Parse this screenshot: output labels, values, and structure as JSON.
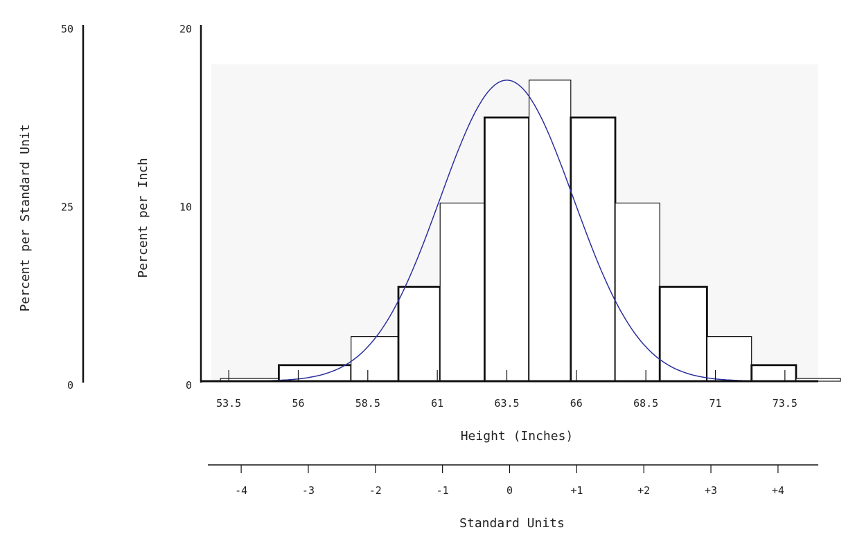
{
  "chart_data": {
    "type": "bar",
    "title": "",
    "xlabel": "Height (Inches)",
    "x2label": "Standard Units",
    "ylabel": "Percent per Inch",
    "y2label": "Percent per Standard Unit",
    "x_ticks": [
      "53.5",
      "56",
      "58.5",
      "61",
      "63.5",
      "66",
      "68.5",
      "71",
      "73.5"
    ],
    "x_tick_values": [
      53.5,
      56,
      58.5,
      61,
      63.5,
      66,
      68.5,
      71,
      73.5
    ],
    "x2_ticks": [
      "-4",
      "-3",
      "-2",
      "-1",
      "0",
      "+1",
      "+2",
      "+3",
      "+4"
    ],
    "x2_tick_values": [
      -4,
      -3,
      -2,
      -1,
      0,
      1,
      2,
      3,
      4
    ],
    "y_ticks": [
      "0",
      "10",
      "20"
    ],
    "y_tick_values": [
      0,
      10,
      20
    ],
    "y2_ticks": [
      "0",
      "25",
      "50"
    ],
    "y2_tick_values": [
      0,
      25,
      50
    ],
    "xlim": [
      52.5,
      74.7
    ],
    "x2lim": [
      -4.6,
      4.6
    ],
    "ylim": [
      0,
      20
    ],
    "y2lim": [
      0,
      50
    ],
    "bins": [
      {
        "x0": 53.2,
        "x1": 55.3,
        "value": 0.15
      },
      {
        "x0": 55.3,
        "x1": 57.9,
        "value": 0.9
      },
      {
        "x0": 57.9,
        "x1": 59.6,
        "value": 2.5
      },
      {
        "x0": 59.6,
        "x1": 61.1,
        "value": 5.3
      },
      {
        "x0": 61.1,
        "x1": 62.7,
        "value": 10.0
      },
      {
        "x0": 62.7,
        "x1": 64.3,
        "value": 14.8
      },
      {
        "x0": 64.3,
        "x1": 65.8,
        "value": 16.9
      },
      {
        "x0": 65.8,
        "x1": 67.4,
        "value": 14.8
      },
      {
        "x0": 67.4,
        "x1": 69.0,
        "value": 10.0
      },
      {
        "x0": 69.0,
        "x1": 70.7,
        "value": 5.3
      },
      {
        "x0": 70.7,
        "x1": 72.3,
        "value": 2.5
      },
      {
        "x0": 72.3,
        "x1": 73.9,
        "value": 0.9
      },
      {
        "x0": 73.9,
        "x1": 75.5,
        "value": 0.15
      }
    ],
    "normal_curve": {
      "mean": 63.5,
      "peak": 16.9,
      "sd_inches": 2.4
    },
    "colors": {
      "curve": "#2b2f9e",
      "bars": "#111111",
      "plot_bg": "#f7f7f7"
    },
    "grid": false
  }
}
